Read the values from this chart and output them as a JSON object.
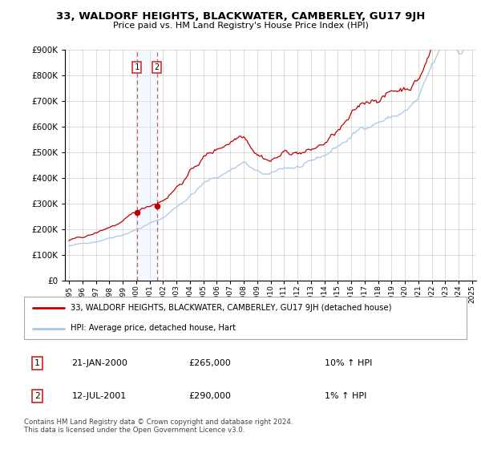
{
  "title": "33, WALDORF HEIGHTS, BLACKWATER, CAMBERLEY, GU17 9JH",
  "subtitle": "Price paid vs. HM Land Registry's House Price Index (HPI)",
  "legend_line1": "33, WALDORF HEIGHTS, BLACKWATER, CAMBERLEY, GU17 9JH (detached house)",
  "legend_line2": "HPI: Average price, detached house, Hart",
  "footer": "Contains HM Land Registry data © Crown copyright and database right 2024.\nThis data is licensed under the Open Government Licence v3.0.",
  "table_rows": [
    {
      "num": "1",
      "date": "21-JAN-2000",
      "price": "£265,000",
      "hpi": "10% ↑ HPI"
    },
    {
      "num": "2",
      "date": "12-JUL-2001",
      "price": "£290,000",
      "hpi": "1% ↑ HPI"
    }
  ],
  "vline1_x": 2000.05,
  "vline2_x": 2001.54,
  "sale1_x": 2000.05,
  "sale1_y": 265000,
  "sale2_x": 2001.54,
  "sale2_y": 290000,
  "hpi_color": "#a8c8e8",
  "price_color": "#c00000",
  "vline_color": "#d06060",
  "highlight_color": "#ddeeff",
  "ylim": [
    0,
    900000
  ],
  "xlim_start": 1994.7,
  "xlim_end": 2025.3,
  "background_color": "#ffffff",
  "grid_color": "#cccccc"
}
